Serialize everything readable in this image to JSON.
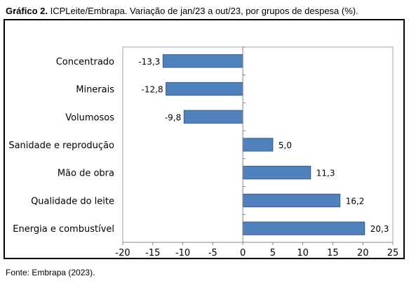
{
  "caption": {
    "prefix": "Gráfico 2.",
    "text": "ICPLeite/Embrapa. Variação de jan/23 a out/23, por grupos de despesa (%)."
  },
  "source": "Fonte: Embrapa (2023).",
  "chart_data": {
    "type": "bar",
    "orientation": "horizontal",
    "categories": [
      "Concentrado",
      "Minerais",
      "Volumosos",
      "Sanidade e reprodução",
      "Mão de obra",
      "Qualidade do leite",
      "Energia e combustível"
    ],
    "values": [
      -13.3,
      -12.8,
      -9.8,
      5.0,
      11.3,
      16.2,
      20.3
    ],
    "value_labels": [
      "-13,3",
      "-12,8",
      "-9,8",
      "5,0",
      "11,3",
      "16,2",
      "20,3"
    ],
    "xlim": [
      -20,
      25
    ],
    "xticks": [
      -20,
      -15,
      -10,
      -5,
      0,
      5,
      10,
      15,
      20,
      25
    ],
    "xtick_labels": [
      "-20",
      "-15",
      "-10",
      "-5",
      "0",
      "5",
      "10",
      "15",
      "20",
      "25"
    ],
    "grid": false,
    "legend": "none",
    "bar_color": "#4f81bd",
    "bar_edge_color": "#385d8a"
  }
}
